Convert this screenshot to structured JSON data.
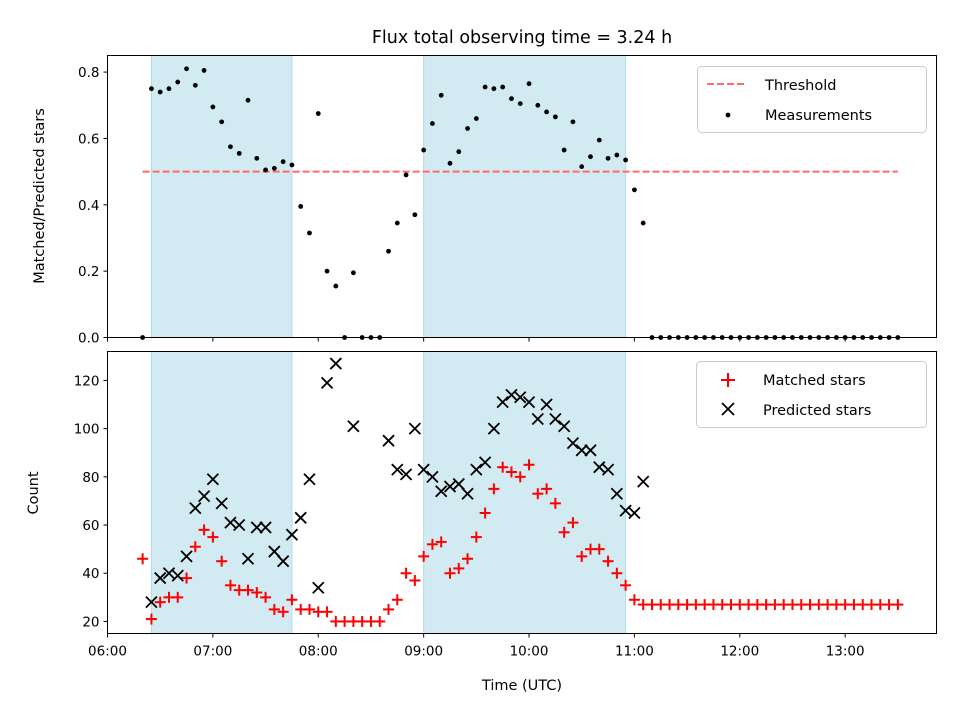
{
  "chart_data": [
    {
      "type": "scatter",
      "title": "Flux total observing time = 3.24 h",
      "xlabel": "",
      "ylabel": "Matched/Predicted stars",
      "x_unit": "hours UTC",
      "xlim": [
        "06:00",
        "13:52"
      ],
      "ylim": [
        0,
        0.85
      ],
      "yticks": [
        0.0,
        0.2,
        0.4,
        0.6,
        0.8
      ],
      "ytick_labels": [
        "0.0",
        "0.2",
        "0.4",
        "0.6",
        "0.8"
      ],
      "shaded_spans": [
        [
          "06:25",
          "07:45"
        ],
        [
          "09:00",
          "10:55"
        ]
      ],
      "shade_color": "#add8e6",
      "grid": false,
      "legend_position": "top-right",
      "threshold": {
        "name": "Threshold",
        "value": 0.5,
        "x_range": [
          "06:20",
          "13:30"
        ],
        "color": "#ff6b6b",
        "style": "dashed"
      },
      "series": [
        {
          "name": "Measurements",
          "color": "#000000",
          "marker": "dot",
          "points": [
            [
              "06:20",
              0.0
            ],
            [
              "06:25",
              0.75
            ],
            [
              "06:30",
              0.74
            ],
            [
              "06:35",
              0.75
            ],
            [
              "06:40",
              0.77
            ],
            [
              "06:45",
              0.81
            ],
            [
              "06:50",
              0.76
            ],
            [
              "06:55",
              0.805
            ],
            [
              "07:00",
              0.695
            ],
            [
              "07:05",
              0.65
            ],
            [
              "07:10",
              0.575
            ],
            [
              "07:15",
              0.555
            ],
            [
              "07:20",
              0.715
            ],
            [
              "07:25",
              0.54
            ],
            [
              "07:30",
              0.505
            ],
            [
              "07:35",
              0.51
            ],
            [
              "07:40",
              0.53
            ],
            [
              "07:45",
              0.52
            ],
            [
              "07:50",
              0.395
            ],
            [
              "07:55",
              0.315
            ],
            [
              "08:00",
              0.675
            ],
            [
              "08:05",
              0.2
            ],
            [
              "08:10",
              0.155
            ],
            [
              "08:15",
              0.0
            ],
            [
              "08:20",
              0.195
            ],
            [
              "08:25",
              0.0
            ],
            [
              "08:30",
              0.0
            ],
            [
              "08:35",
              0.0
            ],
            [
              "08:40",
              0.26
            ],
            [
              "08:45",
              0.345
            ],
            [
              "08:50",
              0.49
            ],
            [
              "08:55",
              0.37
            ],
            [
              "09:00",
              0.565
            ],
            [
              "09:05",
              0.645
            ],
            [
              "09:10",
              0.73
            ],
            [
              "09:15",
              0.525
            ],
            [
              "09:20",
              0.56
            ],
            [
              "09:25",
              0.63
            ],
            [
              "09:30",
              0.66
            ],
            [
              "09:35",
              0.755
            ],
            [
              "09:40",
              0.75
            ],
            [
              "09:45",
              0.755
            ],
            [
              "09:50",
              0.72
            ],
            [
              "09:55",
              0.705
            ],
            [
              "10:00",
              0.765
            ],
            [
              "10:05",
              0.7
            ],
            [
              "10:10",
              0.68
            ],
            [
              "10:15",
              0.665
            ],
            [
              "10:20",
              0.565
            ],
            [
              "10:25",
              0.65
            ],
            [
              "10:30",
              0.515
            ],
            [
              "10:35",
              0.545
            ],
            [
              "10:40",
              0.595
            ],
            [
              "10:45",
              0.54
            ],
            [
              "10:50",
              0.55
            ],
            [
              "10:55",
              0.535
            ],
            [
              "11:00",
              0.445
            ],
            [
              "11:05",
              0.345
            ],
            [
              "11:10",
              0.0
            ],
            [
              "11:15",
              0.0
            ],
            [
              "11:20",
              0.0
            ],
            [
              "11:25",
              0.0
            ],
            [
              "11:30",
              0.0
            ],
            [
              "11:35",
              0.0
            ],
            [
              "11:40",
              0.0
            ],
            [
              "11:45",
              0.0
            ],
            [
              "11:50",
              0.0
            ],
            [
              "11:55",
              0.0
            ],
            [
              "12:00",
              0.0
            ],
            [
              "12:05",
              0.0
            ],
            [
              "12:10",
              0.0
            ],
            [
              "12:15",
              0.0
            ],
            [
              "12:20",
              0.0
            ],
            [
              "12:25",
              0.0
            ],
            [
              "12:30",
              0.0
            ],
            [
              "12:35",
              0.0
            ],
            [
              "12:40",
              0.0
            ],
            [
              "12:45",
              0.0
            ],
            [
              "12:50",
              0.0
            ],
            [
              "12:55",
              0.0
            ],
            [
              "13:00",
              0.0
            ],
            [
              "13:05",
              0.0
            ],
            [
              "13:10",
              0.0
            ],
            [
              "13:15",
              0.0
            ],
            [
              "13:20",
              0.0
            ],
            [
              "13:25",
              0.0
            ],
            [
              "13:30",
              0.0
            ]
          ]
        }
      ]
    },
    {
      "type": "scatter",
      "title": "",
      "xlabel": "Time (UTC)",
      "ylabel": "Count",
      "x_unit": "hours UTC",
      "xlim": [
        "06:00",
        "13:52"
      ],
      "ylim": [
        15,
        132
      ],
      "yticks": [
        20,
        40,
        60,
        80,
        100,
        120
      ],
      "ytick_labels": [
        "20",
        "40",
        "60",
        "80",
        "100",
        "120"
      ],
      "xticks": [
        "06:00",
        "07:00",
        "08:00",
        "09:00",
        "10:00",
        "11:00",
        "12:00",
        "13:00"
      ],
      "xtick_labels": [
        "06:00",
        "07:00",
        "08:00",
        "09:00",
        "10:00",
        "11:00",
        "12:00",
        "13:00"
      ],
      "shaded_spans": [
        [
          "06:25",
          "07:45"
        ],
        [
          "09:00",
          "10:55"
        ]
      ],
      "shade_color": "#add8e6",
      "grid": false,
      "legend_position": "top-right",
      "series": [
        {
          "name": "Matched stars",
          "color": "#ff0000",
          "marker": "plus",
          "points": [
            [
              "06:20",
              46
            ],
            [
              "06:25",
              21
            ],
            [
              "06:30",
              28
            ],
            [
              "06:35",
              30
            ],
            [
              "06:40",
              30
            ],
            [
              "06:45",
              38
            ],
            [
              "06:50",
              51
            ],
            [
              "06:55",
              58
            ],
            [
              "07:00",
              55
            ],
            [
              "07:05",
              45
            ],
            [
              "07:10",
              35
            ],
            [
              "07:15",
              33
            ],
            [
              "07:20",
              33
            ],
            [
              "07:25",
              32
            ],
            [
              "07:30",
              30
            ],
            [
              "07:35",
              25
            ],
            [
              "07:40",
              24
            ],
            [
              "07:45",
              29
            ],
            [
              "07:50",
              25
            ],
            [
              "07:55",
              25
            ],
            [
              "08:00",
              24
            ],
            [
              "08:05",
              24
            ],
            [
              "08:10",
              20
            ],
            [
              "08:15",
              20
            ],
            [
              "08:20",
              20
            ],
            [
              "08:25",
              20
            ],
            [
              "08:30",
              20
            ],
            [
              "08:35",
              20
            ],
            [
              "08:40",
              25
            ],
            [
              "08:45",
              29
            ],
            [
              "08:50",
              40
            ],
            [
              "08:55",
              37
            ],
            [
              "09:00",
              47
            ],
            [
              "09:05",
              52
            ],
            [
              "09:10",
              53
            ],
            [
              "09:15",
              40
            ],
            [
              "09:20",
              42
            ],
            [
              "09:25",
              46
            ],
            [
              "09:30",
              55
            ],
            [
              "09:35",
              65
            ],
            [
              "09:40",
              75
            ],
            [
              "09:45",
              84
            ],
            [
              "09:50",
              82
            ],
            [
              "09:55",
              80
            ],
            [
              "10:00",
              85
            ],
            [
              "10:05",
              73
            ],
            [
              "10:10",
              75
            ],
            [
              "10:15",
              69
            ],
            [
              "10:20",
              57
            ],
            [
              "10:25",
              61
            ],
            [
              "10:30",
              47
            ],
            [
              "10:35",
              50
            ],
            [
              "10:40",
              50
            ],
            [
              "10:45",
              45
            ],
            [
              "10:50",
              40
            ],
            [
              "10:55",
              35
            ],
            [
              "11:00",
              29
            ],
            [
              "11:05",
              27
            ],
            [
              "11:10",
              27
            ],
            [
              "11:15",
              27
            ],
            [
              "11:20",
              27
            ],
            [
              "11:25",
              27
            ],
            [
              "11:30",
              27
            ],
            [
              "11:35",
              27
            ],
            [
              "11:40",
              27
            ],
            [
              "11:45",
              27
            ],
            [
              "11:50",
              27
            ],
            [
              "11:55",
              27
            ],
            [
              "12:00",
              27
            ],
            [
              "12:05",
              27
            ],
            [
              "12:10",
              27
            ],
            [
              "12:15",
              27
            ],
            [
              "12:20",
              27
            ],
            [
              "12:25",
              27
            ],
            [
              "12:30",
              27
            ],
            [
              "12:35",
              27
            ],
            [
              "12:40",
              27
            ],
            [
              "12:45",
              27
            ],
            [
              "12:50",
              27
            ],
            [
              "12:55",
              27
            ],
            [
              "13:00",
              27
            ],
            [
              "13:05",
              27
            ],
            [
              "13:10",
              27
            ],
            [
              "13:15",
              27
            ],
            [
              "13:20",
              27
            ],
            [
              "13:25",
              27
            ],
            [
              "13:30",
              27
            ]
          ]
        },
        {
          "name": "Predicted stars",
          "color": "#000000",
          "marker": "x",
          "points": [
            [
              "06:25",
              28
            ],
            [
              "06:30",
              38
            ],
            [
              "06:35",
              40
            ],
            [
              "06:40",
              39
            ],
            [
              "06:45",
              47
            ],
            [
              "06:50",
              67
            ],
            [
              "06:55",
              72
            ],
            [
              "07:00",
              79
            ],
            [
              "07:05",
              69
            ],
            [
              "07:10",
              61
            ],
            [
              "07:15",
              60
            ],
            [
              "07:20",
              46
            ],
            [
              "07:25",
              59
            ],
            [
              "07:30",
              59
            ],
            [
              "07:35",
              49
            ],
            [
              "07:40",
              45
            ],
            [
              "07:45",
              56
            ],
            [
              "07:50",
              63
            ],
            [
              "07:55",
              79
            ],
            [
              "08:00",
              34
            ],
            [
              "08:05",
              119
            ],
            [
              "08:10",
              127
            ],
            [
              "08:20",
              101
            ],
            [
              "08:40",
              95
            ],
            [
              "08:45",
              83
            ],
            [
              "08:50",
              81
            ],
            [
              "08:55",
              100
            ],
            [
              "09:00",
              83
            ],
            [
              "09:05",
              80
            ],
            [
              "09:10",
              74
            ],
            [
              "09:15",
              76
            ],
            [
              "09:20",
              77
            ],
            [
              "09:25",
              73
            ],
            [
              "09:30",
              83
            ],
            [
              "09:35",
              86
            ],
            [
              "09:40",
              100
            ],
            [
              "09:45",
              111
            ],
            [
              "09:50",
              114
            ],
            [
              "09:55",
              113
            ],
            [
              "10:00",
              111
            ],
            [
              "10:05",
              104
            ],
            [
              "10:10",
              110
            ],
            [
              "10:15",
              104
            ],
            [
              "10:20",
              101
            ],
            [
              "10:25",
              94
            ],
            [
              "10:30",
              91
            ],
            [
              "10:35",
              91
            ],
            [
              "10:40",
              84
            ],
            [
              "10:45",
              83
            ],
            [
              "10:50",
              73
            ],
            [
              "10:55",
              66
            ],
            [
              "11:00",
              65
            ],
            [
              "11:05",
              78
            ]
          ]
        }
      ]
    }
  ]
}
